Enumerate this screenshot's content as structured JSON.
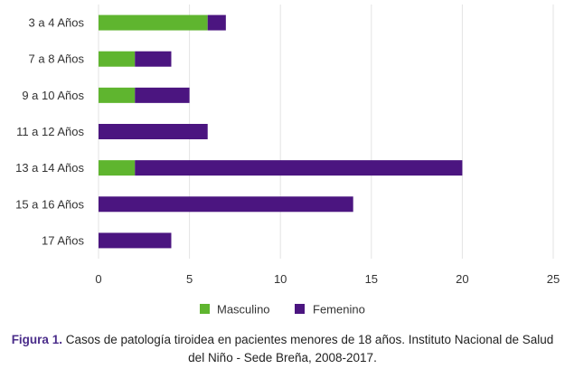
{
  "chart_data": {
    "type": "bar",
    "orientation": "horizontal",
    "stacked": true,
    "categories": [
      "3 a 4 Años",
      "7 a 8 Años",
      "9 a 10 Años",
      "11 a 12 Años",
      "13 a 14 Años",
      "15 a 16 Años",
      "17 Años"
    ],
    "series": [
      {
        "name": "Masculino",
        "color": "#5fb52f",
        "values": [
          6,
          2,
          2,
          0,
          2,
          0,
          0
        ]
      },
      {
        "name": "Femenino",
        "color": "#4b1580",
        "values": [
          1,
          2,
          3,
          6,
          18,
          14,
          4
        ]
      }
    ],
    "xlim": [
      0,
      25
    ],
    "xticks": [
      "0",
      "5",
      "10",
      "15",
      "20",
      "25"
    ],
    "grid": "vertical",
    "legend": "bottom"
  },
  "caption": {
    "label": "Figura 1.",
    "text_line1": " Casos de patología tiroidea en pacientes menores de 18 años. Instituto Nacional de Salud",
    "text_line2": "del Niño - Sede Breña, 2008-2017."
  }
}
